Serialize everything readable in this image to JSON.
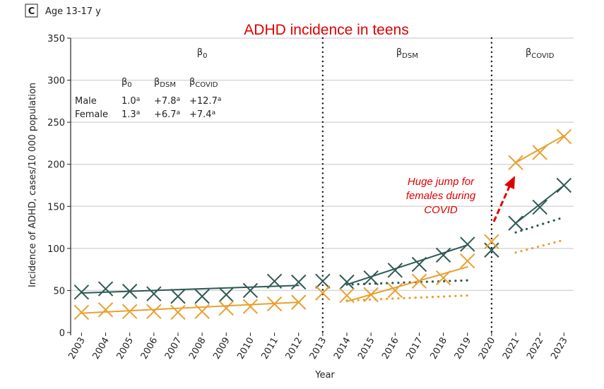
{
  "panel": {
    "letter": "C",
    "subtitle": "Age 13-17 y"
  },
  "chart_data": {
    "type": "line",
    "title": "ADHD incidence in teens",
    "xlabel": "Year",
    "ylabel": "Incidence of ADHD, cases/10 000 population",
    "ylim": [
      0,
      350
    ],
    "yticks": [
      0,
      50,
      100,
      150,
      200,
      250,
      300,
      350
    ],
    "x": [
      2003,
      2004,
      2005,
      2006,
      2007,
      2008,
      2009,
      2010,
      2011,
      2012,
      2013,
      2014,
      2015,
      2016,
      2017,
      2018,
      2019,
      2020,
      2021,
      2022,
      2023
    ],
    "grid": "horizontal",
    "breaks": [
      2013,
      2020
    ],
    "period_labels": [
      {
        "base": "β",
        "sub": "0",
        "x": 2008
      },
      {
        "base": "β",
        "sub": "DSM",
        "x": 2016.5
      },
      {
        "base": "β",
        "sub": "COVID",
        "x": 2022
      }
    ],
    "series": [
      {
        "name": "Male",
        "color": "#2f5a55",
        "values": [
          48,
          52,
          49,
          46,
          43,
          43,
          45,
          50,
          61,
          60,
          61,
          60,
          65,
          74,
          81,
          92,
          105,
          98,
          130,
          149,
          175
        ],
        "fits": [
          {
            "x": [
              2003,
              2012
            ],
            "y": [
              47,
              56
            ],
            "style": "solid"
          },
          {
            "x": [
              2014,
              2019
            ],
            "y": [
              57,
              104
            ],
            "style": "solid"
          },
          {
            "x": [
              2014,
              2019
            ],
            "y": [
              57,
              62
            ],
            "style": "dotted"
          },
          {
            "x": [
              2021,
              2023
            ],
            "y": [
              130,
              175
            ],
            "style": "solid"
          },
          {
            "x": [
              2021,
              2023
            ],
            "y": [
              119,
              137
            ],
            "style": "dotted"
          }
        ]
      },
      {
        "name": "Female",
        "color": "#e8a030",
        "values": [
          24,
          27,
          25,
          25,
          24,
          25,
          29,
          31,
          34,
          36,
          47,
          44,
          45,
          50,
          61,
          65,
          85,
          108,
          202,
          214,
          233
        ],
        "fits": [
          {
            "x": [
              2003,
              2012
            ],
            "y": [
              23,
              36
            ],
            "style": "solid"
          },
          {
            "x": [
              2014,
              2019
            ],
            "y": [
              37,
              78
            ],
            "style": "solid"
          },
          {
            "x": [
              2014,
              2019
            ],
            "y": [
              38,
              44
            ],
            "style": "dotted"
          },
          {
            "x": [
              2021,
              2023
            ],
            "y": [
              202,
              234
            ],
            "style": "solid"
          },
          {
            "x": [
              2021,
              2023
            ],
            "y": [
              95,
              110
            ],
            "style": "dotted"
          }
        ]
      }
    ],
    "coef_table": {
      "headers": [
        {
          "base": "β",
          "sub": "0"
        },
        {
          "base": "β",
          "sub": "DSM"
        },
        {
          "base": "β",
          "sub": "COVID"
        }
      ],
      "rows": [
        {
          "label": "Male",
          "values": [
            "1.0",
            "+7.8",
            "+12.7"
          ],
          "sup": "a"
        },
        {
          "label": "Female",
          "values": [
            "1.3",
            "+6.7",
            "+7.4"
          ],
          "sup": "a"
        }
      ]
    },
    "annotation": {
      "lines": [
        "Huge jump for",
        "females during",
        "COVID"
      ],
      "color": "#e00000"
    }
  }
}
